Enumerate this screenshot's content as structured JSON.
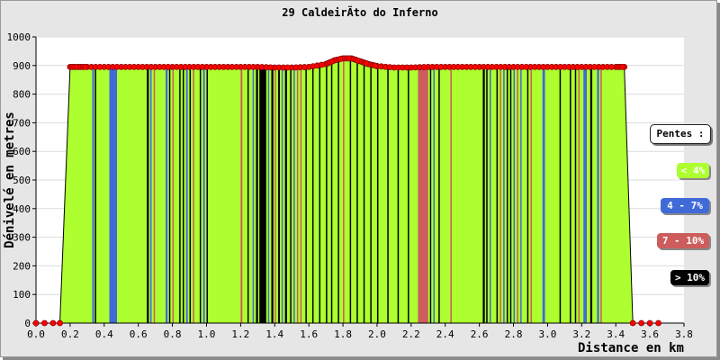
{
  "chart_data": {
    "type": "area",
    "title": "29 CaldeirÃto do Inferno",
    "xlabel": "Distance en km",
    "ylabel": "Dénivelé en metres",
    "xlim": [
      0,
      3.8
    ],
    "ylim": [
      0,
      1000
    ],
    "xticks": [
      "0.0",
      "0.2",
      "0.4",
      "0.6",
      "0.8",
      "1.0",
      "1.2",
      "1.4",
      "1.6",
      "1.8",
      "2.0",
      "2.2",
      "2.4",
      "2.6",
      "2.8",
      "3.0",
      "3.2",
      "3.4",
      "3.6",
      "3.8"
    ],
    "yticks": [
      "0",
      "100",
      "200",
      "300",
      "400",
      "500",
      "600",
      "700",
      "800",
      "900",
      "1000"
    ],
    "grid": true,
    "legend_placement": "right",
    "profile": [
      [
        0.0,
        0
      ],
      [
        0.05,
        0
      ],
      [
        0.1,
        0
      ],
      [
        0.14,
        0
      ],
      [
        0.2,
        895
      ],
      [
        0.25,
        895
      ],
      [
        0.3,
        895
      ],
      [
        0.4,
        895
      ],
      [
        0.5,
        895
      ],
      [
        0.6,
        895
      ],
      [
        0.7,
        895
      ],
      [
        0.8,
        895
      ],
      [
        0.9,
        895
      ],
      [
        1.0,
        895
      ],
      [
        1.1,
        895
      ],
      [
        1.2,
        895
      ],
      [
        1.3,
        895
      ],
      [
        1.4,
        893
      ],
      [
        1.5,
        893
      ],
      [
        1.6,
        895
      ],
      [
        1.7,
        905
      ],
      [
        1.75,
        918
      ],
      [
        1.8,
        925
      ],
      [
        1.85,
        925
      ],
      [
        1.9,
        915
      ],
      [
        1.95,
        905
      ],
      [
        2.0,
        898
      ],
      [
        2.1,
        893
      ],
      [
        2.2,
        893
      ],
      [
        2.3,
        895
      ],
      [
        2.4,
        895
      ],
      [
        2.5,
        895
      ],
      [
        2.6,
        895
      ],
      [
        2.7,
        895
      ],
      [
        2.8,
        895
      ],
      [
        2.9,
        895
      ],
      [
        3.0,
        895
      ],
      [
        3.1,
        895
      ],
      [
        3.2,
        895
      ],
      [
        3.3,
        895
      ],
      [
        3.4,
        895
      ],
      [
        3.45,
        895
      ],
      [
        3.5,
        0
      ],
      [
        3.55,
        0
      ],
      [
        3.6,
        0
      ],
      [
        3.65,
        0
      ]
    ],
    "marker_color": "#ff0000",
    "slope_bands": [
      {
        "x": 0.33,
        "w": 0.01,
        "cls": "4-7"
      },
      {
        "x": 0.345,
        "w": 0.008,
        "cls": ">10"
      },
      {
        "x": 0.43,
        "w": 0.045,
        "cls": "4-7"
      },
      {
        "x": 0.65,
        "w": 0.012,
        "cls": ">10"
      },
      {
        "x": 0.67,
        "w": 0.008,
        "cls": "4-7"
      },
      {
        "x": 0.69,
        "w": 0.008,
        "cls": "7-10"
      },
      {
        "x": 0.76,
        "w": 0.012,
        "cls": "4-7"
      },
      {
        "x": 0.78,
        "w": 0.006,
        "cls": ">10"
      },
      {
        "x": 0.8,
        "w": 0.008,
        "cls": "7-10"
      },
      {
        "x": 0.84,
        "w": 0.006,
        "cls": ">10"
      },
      {
        "x": 0.86,
        "w": 0.005,
        "cls": ">10"
      },
      {
        "x": 0.88,
        "w": 0.01,
        "cls": "4-7"
      },
      {
        "x": 0.9,
        "w": 0.006,
        "cls": ">10"
      },
      {
        "x": 0.92,
        "w": 0.008,
        "cls": "7-10"
      },
      {
        "x": 0.96,
        "w": 0.005,
        "cls": ">10"
      },
      {
        "x": 0.98,
        "w": 0.01,
        "cls": "4-7"
      },
      {
        "x": 1.0,
        "w": 0.006,
        "cls": ">10"
      },
      {
        "x": 1.2,
        "w": 0.01,
        "cls": "7-10"
      },
      {
        "x": 1.24,
        "w": 0.006,
        "cls": ">10"
      },
      {
        "x": 1.27,
        "w": 0.008,
        "cls": "4-7"
      },
      {
        "x": 1.29,
        "w": 0.012,
        "cls": ">10"
      },
      {
        "x": 1.31,
        "w": 0.04,
        "cls": ">10"
      },
      {
        "x": 1.36,
        "w": 0.006,
        "cls": "4-7"
      },
      {
        "x": 1.38,
        "w": 0.012,
        "cls": ">10"
      },
      {
        "x": 1.4,
        "w": 0.008,
        "cls": "7-10"
      },
      {
        "x": 1.42,
        "w": 0.01,
        "cls": ">10"
      },
      {
        "x": 1.44,
        "w": 0.006,
        "cls": "4-7"
      },
      {
        "x": 1.46,
        "w": 0.012,
        "cls": ">10"
      },
      {
        "x": 1.49,
        "w": 0.006,
        "cls": ">10"
      },
      {
        "x": 1.51,
        "w": 0.008,
        "cls": "4-7"
      },
      {
        "x": 1.53,
        "w": 0.006,
        "cls": "7-10"
      },
      {
        "x": 1.55,
        "w": 0.006,
        "cls": "7-10"
      },
      {
        "x": 1.58,
        "w": 0.004,
        "cls": ">10"
      },
      {
        "x": 1.62,
        "w": 0.006,
        "cls": ">10"
      },
      {
        "x": 1.66,
        "w": 0.006,
        "cls": ">10"
      },
      {
        "x": 1.7,
        "w": 0.005,
        "cls": ">10"
      },
      {
        "x": 1.73,
        "w": 0.006,
        "cls": ">10"
      },
      {
        "x": 1.77,
        "w": 0.004,
        "cls": ">10"
      },
      {
        "x": 1.8,
        "w": 0.005,
        "cls": "7-10"
      },
      {
        "x": 1.84,
        "w": 0.005,
        "cls": ">10"
      },
      {
        "x": 1.88,
        "w": 0.005,
        "cls": ">10"
      },
      {
        "x": 1.92,
        "w": 0.005,
        "cls": ">10"
      },
      {
        "x": 1.96,
        "w": 0.006,
        "cls": ">10"
      },
      {
        "x": 2.0,
        "w": 0.006,
        "cls": ">10"
      },
      {
        "x": 2.06,
        "w": 0.005,
        "cls": ">10"
      },
      {
        "x": 2.12,
        "w": 0.006,
        "cls": ">10"
      },
      {
        "x": 2.18,
        "w": 0.006,
        "cls": ">10"
      },
      {
        "x": 2.24,
        "w": 0.06,
        "cls": "7-10"
      },
      {
        "x": 2.31,
        "w": 0.006,
        "cls": ">10"
      },
      {
        "x": 2.33,
        "w": 0.008,
        "cls": "4-7"
      },
      {
        "x": 2.36,
        "w": 0.006,
        "cls": ">10"
      },
      {
        "x": 2.43,
        "w": 0.008,
        "cls": "7-10"
      },
      {
        "x": 2.62,
        "w": 0.012,
        "cls": ">10"
      },
      {
        "x": 2.64,
        "w": 0.008,
        "cls": ">10"
      },
      {
        "x": 2.66,
        "w": 0.006,
        "cls": "4-7"
      },
      {
        "x": 2.7,
        "w": 0.006,
        "cls": ">10"
      },
      {
        "x": 2.72,
        "w": 0.006,
        "cls": "7-10"
      },
      {
        "x": 2.74,
        "w": 0.008,
        "cls": "4-7"
      },
      {
        "x": 2.76,
        "w": 0.005,
        "cls": ">10"
      },
      {
        "x": 2.78,
        "w": 0.006,
        "cls": ">10"
      },
      {
        "x": 2.8,
        "w": 0.006,
        "cls": "4-7"
      },
      {
        "x": 2.82,
        "w": 0.005,
        "cls": "7-10"
      },
      {
        "x": 2.84,
        "w": 0.006,
        "cls": "4-7"
      },
      {
        "x": 2.88,
        "w": 0.006,
        "cls": ">10"
      },
      {
        "x": 2.9,
        "w": 0.006,
        "cls": "7-10"
      },
      {
        "x": 2.97,
        "w": 0.015,
        "cls": "4-7"
      },
      {
        "x": 3.07,
        "w": 0.006,
        "cls": ">10"
      },
      {
        "x": 3.13,
        "w": 0.008,
        "cls": ">10"
      },
      {
        "x": 3.16,
        "w": 0.006,
        "cls": ">10"
      },
      {
        "x": 3.18,
        "w": 0.006,
        "cls": "7-10"
      },
      {
        "x": 3.21,
        "w": 0.02,
        "cls": "4-7"
      },
      {
        "x": 3.25,
        "w": 0.012,
        "cls": ">10"
      },
      {
        "x": 3.29,
        "w": 0.012,
        "cls": "4-7"
      },
      {
        "x": 3.31,
        "w": 0.008,
        "cls": "7-10"
      }
    ],
    "legend": {
      "title": "Pentes :",
      "items": [
        {
          "label": "< 4%",
          "color": "#adff2f",
          "text_color": "#ffffff"
        },
        {
          "label": "4 - 7%",
          "color": "#3f6ad8",
          "text_color": "#ffffff"
        },
        {
          "label": "7 - 10%",
          "color": "#cd5c5c",
          "text_color": "#ffffff"
        },
        {
          "label": "> 10%",
          "color": "#000000",
          "text_color": "#ffffff"
        }
      ]
    },
    "colors": {
      "base": "#adff2f",
      "4-7": "#3f6ad8",
      "7-10": "#cd5c5c",
      ">10": "#000000",
      "plot_bg": "#ffffff",
      "grid": "#dcdcdc"
    }
  }
}
